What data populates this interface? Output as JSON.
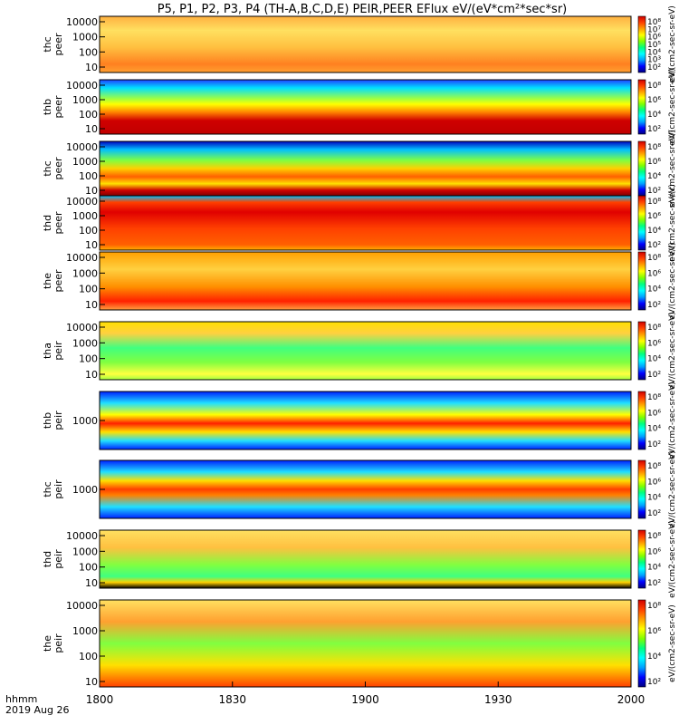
{
  "title": "P5, P1, P2, P3, P4 (TH-A,B,C,D,E) PEIR,PEER EFlux eV/(eV*cm²*sec*sr)",
  "footer": {
    "line1": "hhmm",
    "line2": "2019 Aug 26"
  },
  "colorbar_label": "[eV/(cm2-sec-sr-eV)]",
  "chart_data": {
    "type": "heatmap",
    "x_axis": {
      "min": "1800",
      "max": "2000",
      "tick_labels": [
        "1800",
        "1830",
        "1900",
        "1930",
        "2000"
      ],
      "scale": "time hhmm"
    },
    "y_scale": "log",
    "colormap": [
      "#000080",
      "#0000ff",
      "#00a0ff",
      "#00ffff",
      "#00ff80",
      "#80ff00",
      "#ffff00",
      "#ffa000",
      "#ff4000",
      "#d00000"
    ],
    "panels": [
      {
        "ylabel": [
          "thc",
          "peer"
        ],
        "yticks": [
          "10000",
          "1000",
          "100",
          "10"
        ],
        "cbar_ticks": [
          "10⁸",
          "10⁷",
          "10⁶",
          "10⁵",
          "10⁴",
          "10³",
          "10²"
        ],
        "cbar_label": "eV/(cm2-sec-sr-eV)"
      },
      {
        "ylabel": [
          "thb",
          "peer"
        ],
        "yticks": [
          "10000",
          "1000",
          "100",
          "10"
        ],
        "cbar_ticks": [
          "10⁸",
          "10⁶",
          "10⁴",
          "10²"
        ],
        "cbar_label": "eV/(cm2-sec-sr-eV)"
      },
      {
        "ylabel": [
          "thc",
          "peer"
        ],
        "yticks": [
          "10000",
          "1000",
          "100",
          "10"
        ],
        "cbar_ticks": [
          "10⁸",
          "10⁶",
          "10⁴",
          "10²"
        ],
        "cbar_label": "eV/(cm2-sec-sr-eV)"
      },
      {
        "ylabel": [
          "thd",
          "peer"
        ],
        "yticks": [
          "10000",
          "1000",
          "100",
          "10"
        ],
        "cbar_ticks": [
          "10⁸",
          "10⁶",
          "10⁴",
          "10²"
        ],
        "cbar_label": "eV/(cm2-sec-sr-eV)"
      },
      {
        "ylabel": [
          "the",
          "peer"
        ],
        "yticks": [
          "10000",
          "1000",
          "100",
          "10"
        ],
        "cbar_ticks": [
          "10⁸",
          "10⁶",
          "10⁴",
          "10²"
        ],
        "cbar_label": "eV/(cm2-sec-sr-eV)"
      },
      {
        "ylabel": [
          "tha",
          "peir"
        ],
        "yticks": [
          "10000",
          "1000",
          "100",
          "10"
        ],
        "cbar_ticks": [
          "10⁸",
          "10⁶",
          "10⁴",
          "10²"
        ],
        "cbar_label": "eV/(cm2-sec-sr-eV)"
      },
      {
        "ylabel": [
          "thb",
          "peir"
        ],
        "yticks": [
          "1000"
        ],
        "cbar_ticks": [
          "10⁸",
          "10⁶",
          "10⁴",
          "10²"
        ],
        "cbar_label": "eV/(cm2-sec-sr-eV)"
      },
      {
        "ylabel": [
          "thc",
          "peir"
        ],
        "yticks": [
          "1000"
        ],
        "cbar_ticks": [
          "10⁸",
          "10⁶",
          "10⁴",
          "10²"
        ],
        "cbar_label": "eV/(cm2-sec-sr-eV)"
      },
      {
        "ylabel": [
          "thd",
          "peir"
        ],
        "yticks": [
          "10000",
          "1000",
          "100",
          "10"
        ],
        "cbar_ticks": [
          "10⁸",
          "10⁶",
          "10⁴",
          "10²"
        ],
        "cbar_label": "eV/(cm2-sec-sr-eV)"
      },
      {
        "ylabel": [
          "the",
          "peir"
        ],
        "yticks": [
          "10000",
          "1000",
          "100",
          "10"
        ],
        "cbar_ticks": [
          "10⁸",
          "10⁶",
          "10⁴",
          "10²"
        ],
        "cbar_label": "eV/(cm2-sec-sr-eV)"
      }
    ]
  }
}
